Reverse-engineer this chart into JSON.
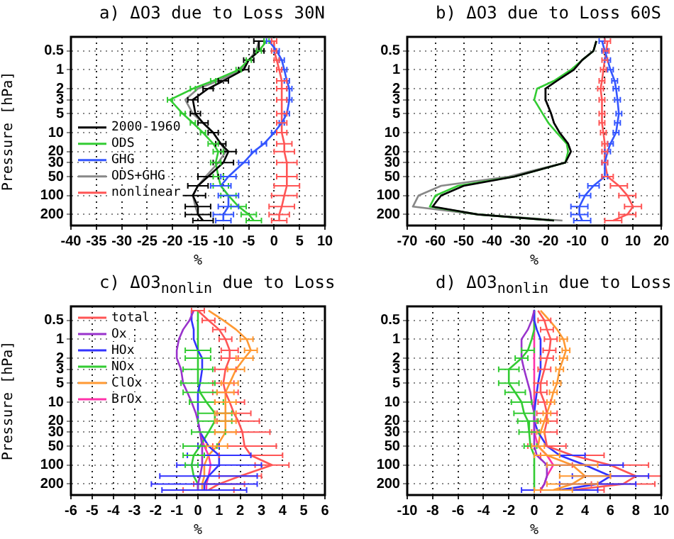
{
  "chart_data": [
    {
      "type": "line",
      "title": "a)  ΔO3 due to Loss 30N",
      "xlabel": "%",
      "ylabel": "Pressure [hPa]",
      "orientation": "horizontal",
      "log": "y",
      "grid": true,
      "legend": "center left",
      "x": [
        0.35,
        0.5,
        0.7,
        1,
        1.5,
        2,
        3,
        5,
        7,
        10,
        15,
        20,
        30,
        50,
        70,
        100,
        150,
        200,
        250
      ],
      "xlim": [
        -40,
        10
      ],
      "xticks": [
        -40,
        -35,
        -30,
        -25,
        -20,
        -15,
        -10,
        -5,
        0,
        5,
        10
      ],
      "ylim": [
        300,
        0.3
      ],
      "yticks": [
        0.5,
        1,
        2,
        3,
        5,
        10,
        20,
        30,
        50,
        100,
        200
      ],
      "series": [
        {
          "name": "2000-1960",
          "color": "#000000",
          "values": [
            -3,
            -3,
            -5,
            -6,
            -10,
            -13,
            -16,
            -15.5,
            -14,
            -12,
            -10.5,
            -9,
            -10,
            -13,
            -15,
            -16,
            -15,
            -15,
            -14
          ],
          "errors": [
            1,
            1,
            1,
            1,
            1,
            1,
            1,
            1,
            1,
            1,
            1,
            1.5,
            2,
            2,
            2,
            2.5,
            2.5,
            2.5,
            2
          ]
        },
        {
          "name": "ODS",
          "color": "#33cc33",
          "values": [
            -1.5,
            -3,
            -5,
            -7,
            -12,
            -16,
            -20.5,
            -18,
            -16,
            -14,
            -12,
            -11,
            -11.5,
            -11,
            -10.5,
            -9,
            -7,
            -5,
            -4
          ],
          "errors": [
            0.5,
            0.5,
            0.5,
            0.5,
            0.5,
            0.5,
            0.5,
            0.5,
            0.5,
            0.5,
            1,
            1,
            1,
            1,
            1.5,
            1.5,
            1.5,
            1.5,
            1.5
          ]
        },
        {
          "name": "GHG",
          "color": "#3355ff",
          "values": [
            -1,
            0.5,
            1.5,
            2,
            2.5,
            3,
            3,
            2.5,
            1.5,
            0,
            -2,
            -4,
            -6,
            -9,
            -10.5,
            -9,
            -9,
            -10,
            -10
          ],
          "errors": [
            0.5,
            0.5,
            0.5,
            0.5,
            0.5,
            0.5,
            0.5,
            0.5,
            0.5,
            0.5,
            0.5,
            0.5,
            1,
            1.5,
            2,
            2,
            2,
            2,
            1.5
          ]
        },
        {
          "name": "ODS+GHG",
          "color": "#888888",
          "values": [
            -3,
            -3.5,
            -5,
            -6.5,
            -11,
            -15,
            -17.5,
            -16,
            -14,
            -12,
            -10.5,
            -9.5,
            -11,
            -13.5,
            -15,
            -16,
            -15.5,
            -15,
            -14
          ]
        },
        {
          "name": "nonlinear",
          "color": "#ff5555",
          "values": [
            0,
            0,
            0.5,
            1,
            1.5,
            1.5,
            1.5,
            1.5,
            1.5,
            1.5,
            2,
            2,
            2.5,
            2.5,
            2.5,
            2,
            1.5,
            1,
            1
          ],
          "errors": [
            0.5,
            0.5,
            0.5,
            0.5,
            1,
            1,
            1,
            1,
            1,
            1,
            1.5,
            2,
            2,
            2,
            2.5,
            2.5,
            2.5,
            2,
            1.5
          ]
        }
      ]
    },
    {
      "type": "line",
      "title": "b)  ΔO3 due to Loss 60S",
      "xlabel": "%",
      "orientation": "horizontal",
      "log": "y",
      "grid": true,
      "x": [
        0.35,
        0.5,
        0.7,
        1,
        1.5,
        2,
        3,
        5,
        7,
        10,
        15,
        20,
        30,
        50,
        70,
        100,
        150,
        200,
        250
      ],
      "xlim": [
        -70,
        20
      ],
      "xticks": [
        -70,
        -60,
        -50,
        -40,
        -30,
        -20,
        -10,
        0,
        10,
        20
      ],
      "ylim": [
        300,
        0.3
      ],
      "yticks": [
        0.5,
        1,
        2,
        3,
        5,
        10,
        20,
        30,
        50,
        100,
        200
      ],
      "series": [
        {
          "color": "#000000",
          "values": [
            -3,
            -4,
            -8,
            -11,
            -17,
            -21,
            -21,
            -19,
            -18,
            -16,
            -13,
            -12,
            -14,
            -32,
            -50,
            -58,
            -61,
            -45,
            -18
          ]
        },
        {
          "color": "#33cc33",
          "values": [
            -3,
            -4,
            -8,
            -12,
            -18,
            -24,
            -25,
            -22,
            -20,
            -17,
            -13.5,
            -13,
            -14,
            -32,
            -52,
            -60,
            -62,
            -45,
            -18
          ]
        },
        {
          "color": "#3355ff",
          "values": [
            -1,
            0,
            1,
            2,
            3.5,
            4,
            4.5,
            5,
            4.5,
            4,
            2,
            1,
            0,
            0,
            -4,
            -7,
            -9,
            -9,
            -8
          ],
          "errors": [
            1,
            1,
            1,
            1,
            1,
            1,
            1,
            1,
            1,
            1,
            1,
            1,
            1,
            1,
            2,
            2,
            3,
            3,
            3
          ]
        },
        {
          "color": "#888888",
          "values": [
            -3,
            -4,
            -8,
            -11,
            -17,
            -21,
            -21,
            -19,
            -18,
            -16,
            -13,
            -12,
            -14,
            -34,
            -58,
            -66,
            -68,
            -45,
            -15
          ]
        },
        {
          "color": "#ff5555",
          "values": [
            1,
            0.5,
            0,
            -0.5,
            -1,
            -1.5,
            -1,
            -1,
            -1,
            -0.5,
            0,
            0,
            0,
            1,
            5,
            8,
            10,
            8,
            3
          ],
          "errors": [
            1,
            1,
            1,
            1,
            1,
            1,
            1,
            1,
            1,
            1,
            1,
            1,
            1,
            2,
            3,
            3,
            3,
            3,
            3
          ]
        }
      ]
    },
    {
      "type": "line",
      "title": "c)  ΔO3$_{nonlin}$  due to Loss",
      "xlabel": "%",
      "ylabel": "Pressure [hPa]",
      "orientation": "horizontal",
      "log": "y",
      "grid": true,
      "legend": "top left",
      "x": [
        0.35,
        0.5,
        0.7,
        1,
        1.5,
        2,
        3,
        5,
        7,
        10,
        15,
        20,
        30,
        50,
        70,
        100,
        150,
        200,
        250
      ],
      "xlim": [
        -6,
        6
      ],
      "xticks": [
        -6,
        -5,
        -4,
        -3,
        -2,
        -1,
        0,
        1,
        2,
        3,
        4,
        5,
        6
      ],
      "ylim": [
        300,
        0.3
      ],
      "yticks": [
        0.5,
        1,
        2,
        3,
        5,
        10,
        20,
        30,
        50,
        100,
        200
      ],
      "series": [
        {
          "name": "total",
          "color": "#ff5555",
          "values": [
            0,
            0.5,
            1,
            1.3,
            1.5,
            1.5,
            1.3,
            1.2,
            1.3,
            1.5,
            1.7,
            1.9,
            2.1,
            2.2,
            2.5,
            3.5,
            2,
            1,
            0.5
          ],
          "errors": [
            0.3,
            0.3,
            0.3,
            0.3,
            0.4,
            0.4,
            0.5,
            0.5,
            0.6,
            0.7,
            0.8,
            1,
            1.3,
            1.5,
            1.5,
            0.8,
            1,
            1.2,
            1.2
          ]
        },
        {
          "name": "Ox",
          "color": "#9933cc",
          "values": [
            -0.2,
            -0.4,
            -0.7,
            -0.9,
            -1,
            -1,
            -0.8,
            -0.7,
            -0.5,
            -0.3,
            -0.1,
            0,
            0.1,
            0.2,
            0.2,
            0.2,
            0.1,
            0,
            0
          ]
        },
        {
          "name": "HOx",
          "color": "#3333ff",
          "values": [
            -0.3,
            -0.3,
            -0.2,
            -0.2,
            0,
            0.2,
            0.2,
            0.1,
            0,
            0,
            0,
            0,
            0.1,
            0.5,
            1,
            1,
            0.5,
            0.3,
            0.3
          ],
          "errors": [
            null,
            null,
            null,
            null,
            null,
            null,
            null,
            null,
            null,
            null,
            null,
            null,
            null,
            0.5,
            1.5,
            2,
            2.3,
            2.5,
            2
          ]
        },
        {
          "name": "NOx",
          "color": "#33cc33",
          "values": [
            0,
            0,
            0,
            0,
            0,
            0,
            0,
            0,
            0.1,
            0.4,
            0.8,
            0.8,
            0.5,
            0.1,
            -0.2,
            -0.3,
            -0.2,
            0,
            0
          ],
          "errors": [
            null,
            null,
            null,
            null,
            0.6,
            0.6,
            0.7,
            0.8,
            0.8,
            0.8,
            0.8,
            0.8,
            0.8,
            0.8,
            0.5,
            0.3,
            null,
            null,
            null
          ]
        },
        {
          "name": "ClOx",
          "color": "#ff9933",
          "values": [
            0.5,
            1.2,
            1.8,
            2.3,
            2.5,
            2.2,
            1.8,
            1.5,
            1.3,
            1.3,
            1.3,
            1.3,
            1.3,
            0.9,
            0.5,
            0.3,
            0.3,
            0.2,
            0.2
          ],
          "errors": [
            null,
            null,
            null,
            0.3,
            0.3,
            0.4,
            0.4,
            0.4,
            0.4,
            0.5,
            0.5,
            0.5,
            0.5,
            0.5,
            null,
            null,
            null,
            null,
            null
          ]
        },
        {
          "name": "BrOx",
          "color": "#ff33aa",
          "values": [
            null,
            null,
            null,
            null,
            null,
            null,
            null,
            null,
            null,
            null,
            null,
            null,
            0.1,
            0.3,
            0.5,
            0.6,
            0.5,
            0.4,
            0.4
          ]
        }
      ]
    },
    {
      "type": "line",
      "title": "d)  ΔO3$_{nonlin}$  due to Loss",
      "xlabel": "%",
      "orientation": "horizontal",
      "log": "y",
      "grid": true,
      "x": [
        0.35,
        0.5,
        0.7,
        1,
        1.5,
        2,
        3,
        5,
        7,
        10,
        15,
        20,
        30,
        50,
        70,
        100,
        150,
        200,
        250
      ],
      "xlim": [
        -10,
        10
      ],
      "xticks": [
        -10,
        -8,
        -6,
        -4,
        -2,
        0,
        2,
        4,
        6,
        8,
        10
      ],
      "ylim": [
        300,
        0.3
      ],
      "yticks": [
        0.5,
        1,
        2,
        3,
        5,
        10,
        20,
        30,
        50,
        100,
        200
      ],
      "series": [
        {
          "color": "#ff5555",
          "values": [
            0.3,
            0.8,
            1,
            1.3,
            1.2,
            1,
            0.8,
            0.5,
            0.5,
            0.8,
            1,
            1,
            0.8,
            1,
            3,
            6,
            8,
            7,
            3
          ],
          "errors": [
            null,
            0.5,
            0.5,
            0.5,
            0.5,
            0.5,
            0.5,
            0.5,
            0.5,
            0.5,
            0.8,
            0.8,
            1,
            1.5,
            2.5,
            3,
            2,
            2.5,
            2.5
          ]
        },
        {
          "color": "#9933cc",
          "values": [
            0,
            -0.2,
            -0.5,
            -1,
            -1,
            -1,
            -0.8,
            -0.5,
            -0.3,
            -0.2,
            0,
            0,
            0,
            0,
            0.2,
            1,
            1,
            0.8,
            0.5
          ]
        },
        {
          "color": "#3333ff",
          "values": [
            0,
            0,
            0.2,
            0.5,
            0.5,
            0.5,
            0.5,
            0.3,
            0.2,
            0.1,
            0,
            0,
            0.3,
            1,
            2,
            4,
            6,
            5,
            2
          ],
          "errors": [
            null,
            null,
            null,
            null,
            null,
            null,
            null,
            null,
            null,
            null,
            null,
            null,
            null,
            null,
            2,
            3,
            3,
            3,
            3
          ]
        },
        {
          "color": "#33cc33",
          "values": [
            0,
            0,
            0,
            -0.2,
            -0.5,
            -1,
            -2,
            -2,
            -1.5,
            -1,
            -0.8,
            -0.5,
            -0.4,
            -0.3,
            0,
            0,
            0,
            0,
            0
          ],
          "errors": [
            null,
            null,
            null,
            null,
            0.5,
            0.5,
            0.8,
            0.8,
            0.8,
            0.8,
            0.8,
            0.8,
            0.8,
            0.5,
            null,
            null,
            null,
            null,
            null
          ]
        },
        {
          "color": "#ff9933",
          "values": [
            0.5,
            1.2,
            1.8,
            2.3,
            2.5,
            2.3,
            2,
            1.8,
            1.5,
            1.3,
            1,
            0.8,
            0.5,
            0.3,
            1,
            3,
            4,
            3,
            1.5
          ],
          "errors": [
            null,
            null,
            null,
            0.3,
            0.3,
            0.3,
            0.3,
            0.3,
            0.3,
            0.3,
            0.3,
            0.3,
            0.3,
            0.5,
            1,
            2,
            2,
            2,
            1.5
          ]
        },
        {
          "color": "#ff33aa",
          "values": [
            0,
            0,
            0,
            0,
            0,
            0,
            0,
            0,
            0,
            0,
            0,
            0,
            0,
            0.3,
            1,
            1.5,
            1,
            0.8,
            0.5
          ]
        }
      ]
    }
  ]
}
